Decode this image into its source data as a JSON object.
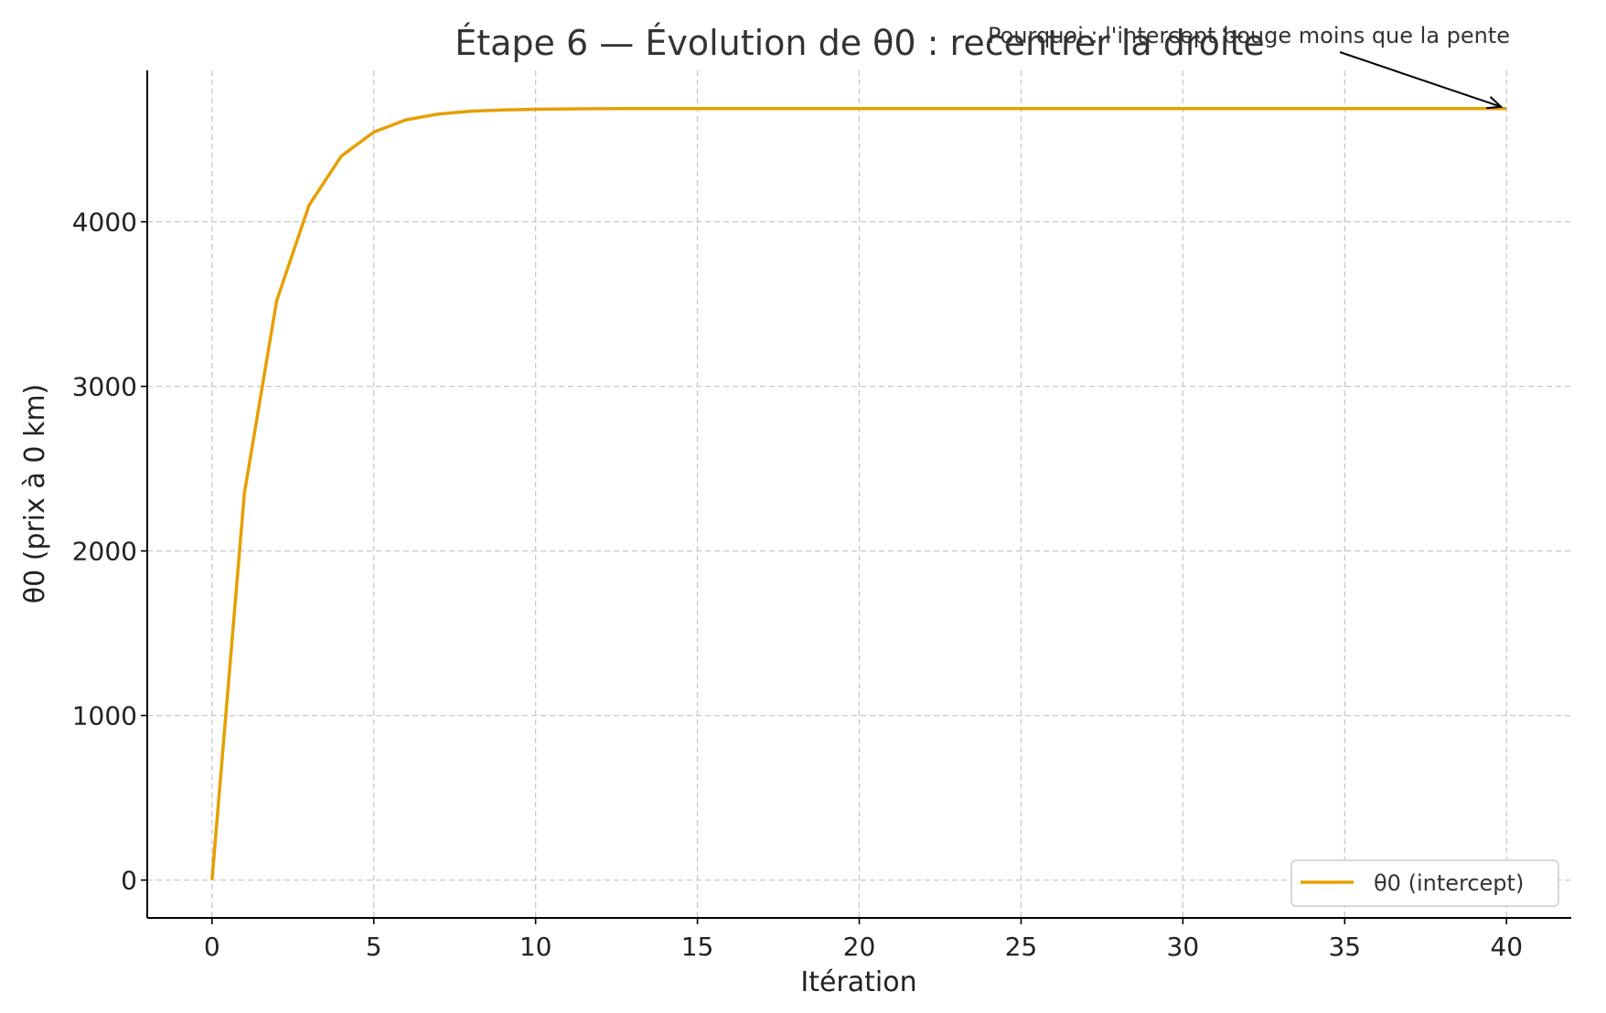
{
  "chart_data": {
    "type": "line",
    "title": "Étape 6 — Évolution de θ0 : recentrer la droite",
    "xlabel": "Itération",
    "ylabel": "θ0 (prix à 0 km)",
    "xlim": [
      -2,
      42
    ],
    "ylim": [
      -230,
      4920
    ],
    "xticks": [
      0,
      5,
      10,
      15,
      20,
      25,
      30,
      35,
      40
    ],
    "yticks": [
      0,
      1000,
      2000,
      3000,
      4000
    ],
    "grid": true,
    "legend_position": "lower-right",
    "series": [
      {
        "name": "θ0 (intercept)",
        "color": "#E69F00",
        "x": [
          0,
          1,
          2,
          3,
          4,
          5,
          6,
          7,
          8,
          9,
          10,
          11,
          12,
          13,
          14,
          15,
          16,
          17,
          18,
          19,
          20,
          21,
          22,
          23,
          24,
          25,
          26,
          27,
          28,
          29,
          30,
          31,
          32,
          33,
          34,
          35,
          36,
          37,
          38,
          39,
          40
        ],
        "y": [
          0,
          2350,
          3520,
          4100,
          4400,
          4545,
          4620,
          4655,
          4672,
          4680,
          4684,
          4686,
          4687,
          4688,
          4688,
          4688,
          4688,
          4688,
          4688,
          4688,
          4688,
          4688,
          4688,
          4688,
          4688,
          4688,
          4688,
          4688,
          4688,
          4688,
          4688,
          4688,
          4688,
          4688,
          4688,
          4688,
          4688,
          4688,
          4688,
          4688,
          4688
        ]
      }
    ],
    "annotation": {
      "text": "Pourquoi : l'intercept bouge moins que la pente",
      "target_x": 40,
      "target_y": 4688
    }
  }
}
